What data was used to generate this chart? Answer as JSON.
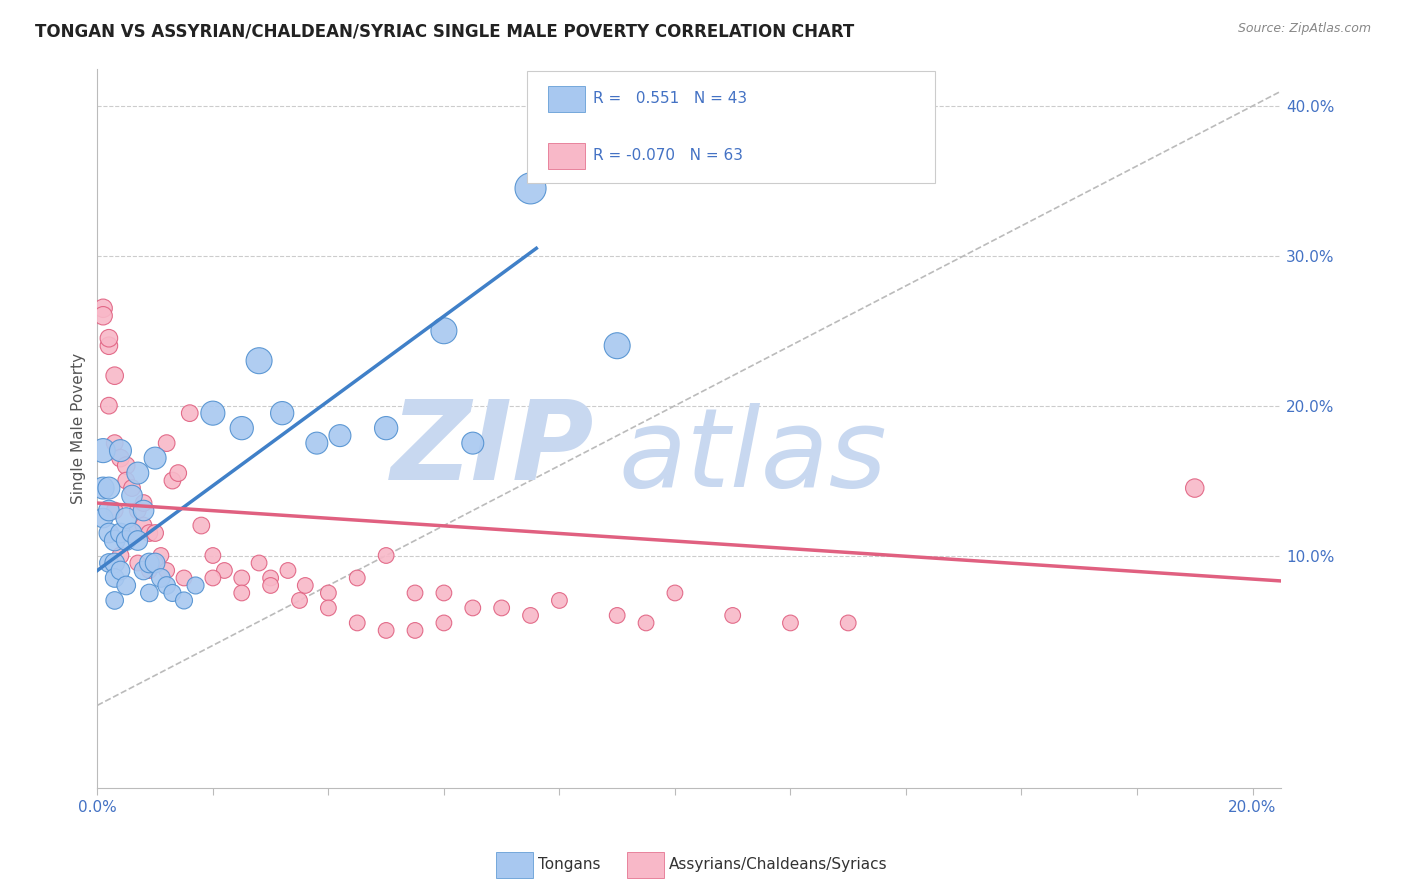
{
  "title": "TONGAN VS ASSYRIAN/CHALDEAN/SYRIAC SINGLE MALE POVERTY CORRELATION CHART",
  "source": "Source: ZipAtlas.com",
  "ylabel": "Single Male Poverty",
  "xlim": [
    0.0,
    0.205
  ],
  "ylim": [
    -0.055,
    0.425
  ],
  "yticks_right": [
    0.1,
    0.2,
    0.3,
    0.4
  ],
  "ytick_right_labels": [
    "10.0%",
    "20.0%",
    "30.0%",
    "40.0%"
  ],
  "blue_color": "#A8C8F0",
  "pink_color": "#F8B8C8",
  "blue_edge_color": "#5090D0",
  "pink_edge_color": "#E06080",
  "blue_line_color": "#4080C8",
  "pink_line_color": "#E06080",
  "ref_line_color": "#BBBBBB",
  "watermark_zip_color": "#C8D8F0",
  "watermark_atlas_color": "#C8D8F0",
  "axis_label_color": "#4472C4",
  "background_color": "#FFFFFF",
  "grid_color": "#CCCCCC",
  "tongan_x": [
    0.001,
    0.001,
    0.001,
    0.002,
    0.002,
    0.002,
    0.002,
    0.003,
    0.003,
    0.003,
    0.003,
    0.004,
    0.004,
    0.004,
    0.005,
    0.005,
    0.005,
    0.006,
    0.006,
    0.007,
    0.007,
    0.008,
    0.008,
    0.009,
    0.009,
    0.01,
    0.01,
    0.011,
    0.012,
    0.013,
    0.015,
    0.017,
    0.02,
    0.025,
    0.028,
    0.032,
    0.038,
    0.042,
    0.05,
    0.06,
    0.065,
    0.075,
    0.09
  ],
  "tongan_y": [
    0.17,
    0.145,
    0.125,
    0.145,
    0.13,
    0.115,
    0.095,
    0.11,
    0.095,
    0.085,
    0.07,
    0.17,
    0.115,
    0.09,
    0.125,
    0.11,
    0.08,
    0.14,
    0.115,
    0.155,
    0.11,
    0.13,
    0.09,
    0.095,
    0.075,
    0.165,
    0.095,
    0.085,
    0.08,
    0.075,
    0.07,
    0.08,
    0.195,
    0.185,
    0.23,
    0.195,
    0.175,
    0.18,
    0.185,
    0.25,
    0.175,
    0.345,
    0.24
  ],
  "tongan_size": [
    30,
    25,
    20,
    25,
    22,
    20,
    18,
    22,
    20,
    18,
    16,
    25,
    20,
    18,
    22,
    20,
    18,
    22,
    20,
    25,
    20,
    22,
    18,
    20,
    16,
    25,
    20,
    18,
    16,
    15,
    15,
    15,
    30,
    28,
    35,
    28,
    25,
    25,
    28,
    35,
    25,
    50,
    35
  ],
  "assyrian_x": [
    0.001,
    0.001,
    0.002,
    0.002,
    0.002,
    0.003,
    0.003,
    0.003,
    0.004,
    0.004,
    0.005,
    0.005,
    0.006,
    0.006,
    0.007,
    0.007,
    0.008,
    0.008,
    0.009,
    0.009,
    0.01,
    0.01,
    0.011,
    0.012,
    0.013,
    0.014,
    0.016,
    0.018,
    0.02,
    0.022,
    0.025,
    0.028,
    0.03,
    0.033,
    0.036,
    0.04,
    0.045,
    0.05,
    0.055,
    0.06,
    0.065,
    0.07,
    0.075,
    0.08,
    0.09,
    0.095,
    0.1,
    0.11,
    0.12,
    0.13,
    0.01,
    0.012,
    0.015,
    0.02,
    0.025,
    0.03,
    0.035,
    0.04,
    0.045,
    0.05,
    0.055,
    0.06,
    0.19
  ],
  "assyrian_y": [
    0.265,
    0.26,
    0.24,
    0.245,
    0.2,
    0.22,
    0.175,
    0.13,
    0.165,
    0.1,
    0.16,
    0.15,
    0.145,
    0.115,
    0.13,
    0.095,
    0.135,
    0.12,
    0.115,
    0.09,
    0.115,
    0.095,
    0.1,
    0.175,
    0.15,
    0.155,
    0.195,
    0.12,
    0.1,
    0.09,
    0.085,
    0.095,
    0.085,
    0.09,
    0.08,
    0.075,
    0.085,
    0.1,
    0.075,
    0.075,
    0.065,
    0.065,
    0.06,
    0.07,
    0.06,
    0.055,
    0.075,
    0.06,
    0.055,
    0.055,
    0.095,
    0.09,
    0.085,
    0.085,
    0.075,
    0.08,
    0.07,
    0.065,
    0.055,
    0.05,
    0.05,
    0.055,
    0.145
  ],
  "assyrian_size": [
    22,
    22,
    20,
    20,
    18,
    20,
    18,
    18,
    20,
    18,
    20,
    18,
    18,
    18,
    18,
    16,
    18,
    18,
    18,
    16,
    18,
    16,
    16,
    18,
    18,
    18,
    18,
    18,
    16,
    16,
    16,
    16,
    16,
    16,
    16,
    16,
    16,
    16,
    16,
    16,
    16,
    16,
    16,
    16,
    16,
    16,
    16,
    16,
    16,
    16,
    16,
    16,
    16,
    16,
    16,
    16,
    16,
    16,
    16,
    16,
    16,
    16,
    22
  ],
  "blue_trend_x": [
    0.0,
    0.076
  ],
  "blue_trend_y": [
    0.09,
    0.305
  ],
  "pink_trend_x": [
    0.0,
    0.205
  ],
  "pink_trend_y": [
    0.135,
    0.083
  ],
  "ref_line_x": [
    0.0,
    0.205
  ],
  "ref_line_y": [
    0.0,
    0.41
  ]
}
